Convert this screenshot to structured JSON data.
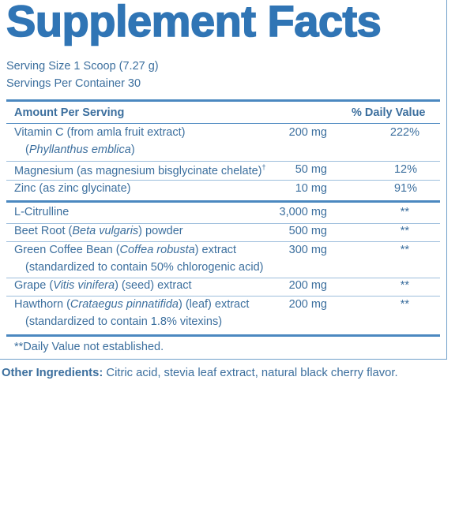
{
  "title": "Supplement Facts",
  "serving_size": "Serving Size 1 Scoop (7.27 g)",
  "servings_per_container": "Servings Per Container 30",
  "header": {
    "amount": "Amount Per Serving",
    "dv": "% Daily Value"
  },
  "rows": {
    "vitc": {
      "name": "Vitamin C (from amla fruit extract)",
      "sub_italic": "Phyllanthus emblica",
      "sub_open": "(",
      "sub_close": ")",
      "amount": "200 mg",
      "dv": "222%"
    },
    "mag": {
      "name": "Magnesium (as magnesium bisglycinate chelate)",
      "mark": "†",
      "amount": "50 mg",
      "dv": "12%"
    },
    "zinc": {
      "name": "Zinc (as zinc glycinate)",
      "amount": "10 mg",
      "dv": "91%"
    },
    "citr": {
      "name": "L-Citrulline",
      "amount": "3,000 mg",
      "dv": "**"
    },
    "beet": {
      "pre": "Beet Root (",
      "italic": "Beta vulgaris",
      "post": ") powder",
      "amount": "500 mg",
      "dv": "**"
    },
    "coffee": {
      "pre": "Green Coffee Bean (",
      "italic": "Coffea robusta",
      "post": ") extract",
      "sub": "(standardized to contain 50% chlorogenic acid)",
      "amount": "300 mg",
      "dv": "**"
    },
    "grape": {
      "pre": "Grape (",
      "italic": "Vitis vinifera",
      "post": ") (seed) extract",
      "amount": "200 mg",
      "dv": "**"
    },
    "hawthorn": {
      "pre": "Hawthorn (",
      "italic": "Crataegus pinnatifida",
      "post": ") (leaf) extract",
      "sub": "(standardized to contain 1.8% vitexins)",
      "amount": "200 mg",
      "dv": "**"
    }
  },
  "footnote": "**Daily Value not established.",
  "other_ingredients": {
    "label": "Other Ingredients:",
    "text": " Citric acid, stevia leaf extract, natural black cherry flavor."
  }
}
